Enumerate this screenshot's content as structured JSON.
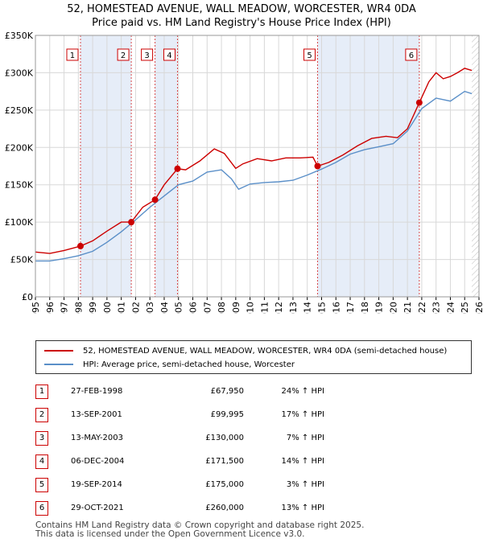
{
  "title_line1": "52, HOMESTEAD AVENUE, WALL MEADOW, WORCESTER, WR4 0DA",
  "title_line2": "Price paid vs. HM Land Registry's House Price Index (HPI)",
  "chart_data": {
    "type": "line",
    "ylim": [
      0,
      350000
    ],
    "xlim": [
      1995,
      2026
    ],
    "y_ticks": [
      {
        "value": 0,
        "label": "£0"
      },
      {
        "value": 50000,
        "label": "£50K"
      },
      {
        "value": 100000,
        "label": "£100K"
      },
      {
        "value": 150000,
        "label": "£150K"
      },
      {
        "value": 200000,
        "label": "£200K"
      },
      {
        "value": 250000,
        "label": "£250K"
      },
      {
        "value": 300000,
        "label": "£300K"
      },
      {
        "value": 350000,
        "label": "£350K"
      }
    ],
    "x_ticks": [
      1995,
      1996,
      1997,
      1998,
      1999,
      2000,
      2001,
      2002,
      2003,
      2004,
      2005,
      2006,
      2007,
      2008,
      2009,
      2010,
      2011,
      2012,
      2013,
      2014,
      2015,
      2016,
      2017,
      2018,
      2019,
      2020,
      2021,
      2022,
      2023,
      2024,
      2025,
      2026
    ],
    "shaded_ranges": [
      [
        1998.15,
        2001.7
      ],
      [
        2003.36,
        2004.93
      ],
      [
        2014.72,
        2021.83
      ]
    ],
    "future_start": 2025.5,
    "series": [
      {
        "name": "52, HOMESTEAD AVENUE, WALL MEADOW, WORCESTER, WR4 0DA (semi-detached house)",
        "color": "#cc0000",
        "x": [
          1995.0,
          1996.0,
          1997.0,
          1998.15,
          1999.0,
          2000.0,
          2001.0,
          2001.7,
          2002.5,
          2003.36,
          2004.0,
          2004.93,
          2005.5,
          2006.5,
          2007.5,
          2008.2,
          2009.0,
          2009.5,
          2010.5,
          2011.5,
          2012.5,
          2013.5,
          2014.4,
          2014.72,
          2015.5,
          2016.5,
          2017.5,
          2018.5,
          2019.5,
          2020.3,
          2021.0,
          2021.83,
          2022.5,
          2023.0,
          2023.5,
          2024.0,
          2024.5,
          2025.0,
          2025.5
        ],
        "y": [
          60000,
          58000,
          62000,
          67950,
          75000,
          88000,
          100000,
          99995,
          120000,
          130000,
          150000,
          171500,
          170000,
          182000,
          198000,
          192000,
          172000,
          178000,
          185000,
          182000,
          186000,
          186000,
          187000,
          175000,
          180000,
          190000,
          202000,
          212000,
          215000,
          213000,
          225000,
          260000,
          288000,
          300000,
          292000,
          295000,
          300000,
          306000,
          303000
        ]
      },
      {
        "name": "HPI: Average price, semi-detached house, Worcester",
        "color": "#5a8fc8",
        "x": [
          1995.0,
          1996.0,
          1997.0,
          1998.0,
          1999.0,
          2000.0,
          2001.0,
          2002.0,
          2003.0,
          2004.0,
          2005.0,
          2006.0,
          2007.0,
          2008.0,
          2008.7,
          2009.2,
          2010.0,
          2011.0,
          2012.0,
          2013.0,
          2014.0,
          2015.0,
          2016.0,
          2017.0,
          2018.0,
          2019.0,
          2020.0,
          2021.0,
          2022.0,
          2023.0,
          2024.0,
          2025.0,
          2025.5
        ],
        "y": [
          48000,
          48000,
          51000,
          55000,
          61000,
          73000,
          87000,
          103000,
          120000,
          135000,
          150000,
          155000,
          167000,
          170000,
          158000,
          144000,
          151000,
          153000,
          154000,
          156000,
          163000,
          171000,
          180000,
          191000,
          197000,
          201000,
          205000,
          222000,
          252000,
          266000,
          262000,
          275000,
          272000
        ]
      }
    ],
    "sales": [
      {
        "label": "1",
        "x": 1998.15,
        "price": 67950
      },
      {
        "label": "2",
        "x": 2001.7,
        "price": 99995
      },
      {
        "label": "3",
        "x": 2003.36,
        "price": 130000
      },
      {
        "label": "4",
        "x": 2004.93,
        "price": 171500
      },
      {
        "label": "5",
        "x": 2014.72,
        "price": 175000
      },
      {
        "label": "6",
        "x": 2021.83,
        "price": 260000
      }
    ]
  },
  "legend": {
    "red": "52, HOMESTEAD AVENUE, WALL MEADOW, WORCESTER, WR4 0DA (semi-detached house)",
    "red_color": "#cc0000",
    "blue": "HPI: Average price, semi-detached house, Worcester",
    "blue_color": "#5a8fc8"
  },
  "table": [
    {
      "num": "1",
      "date": "27-FEB-1998",
      "price": "£67,950",
      "hpi": "24% ↑ HPI"
    },
    {
      "num": "2",
      "date": "13-SEP-2001",
      "price": "£99,995",
      "hpi": "17% ↑ HPI"
    },
    {
      "num": "3",
      "date": "13-MAY-2003",
      "price": "£130,000",
      "hpi": "7% ↑ HPI"
    },
    {
      "num": "4",
      "date": "06-DEC-2004",
      "price": "£171,500",
      "hpi": "14% ↑ HPI"
    },
    {
      "num": "5",
      "date": "19-SEP-2014",
      "price": "£175,000",
      "hpi": "3% ↑ HPI"
    },
    {
      "num": "6",
      "date": "29-OCT-2021",
      "price": "£260,000",
      "hpi": "13% ↑ HPI"
    }
  ],
  "footer_line1": "Contains HM Land Registry data © Crown copyright and database right 2025.",
  "footer_line2": "This data is licensed under the Open Government Licence v3.0."
}
